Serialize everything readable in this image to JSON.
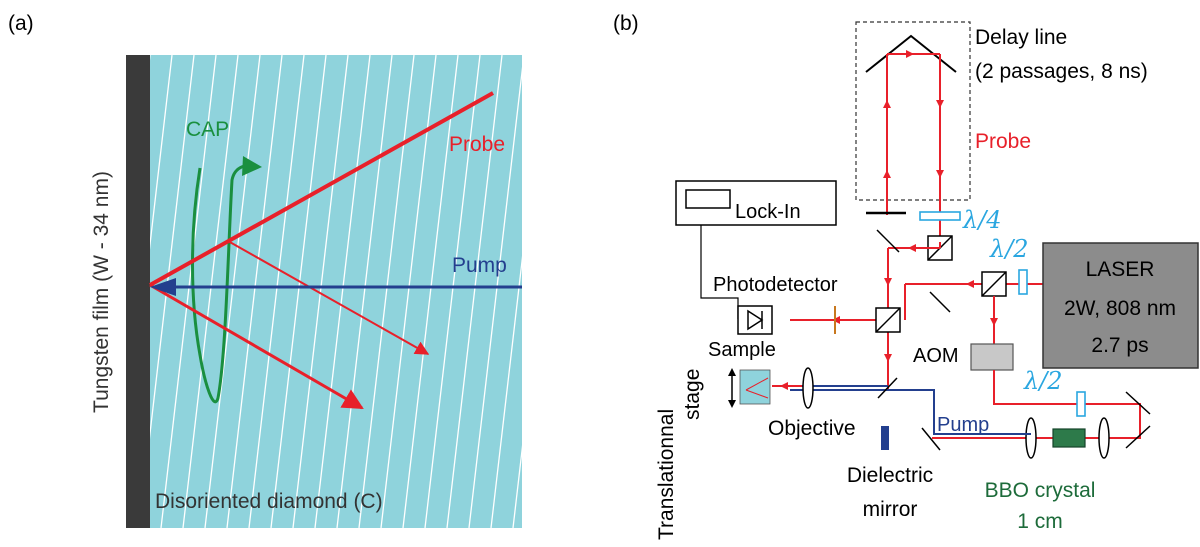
{
  "panel_a": {
    "label": "(a)",
    "film_label": "Tungsten film (W - 34 nm)",
    "substrate_label": "Disoriented diamond (C)",
    "cap_label": "CAP",
    "probe_label": "Probe",
    "pump_label": "Pump"
  },
  "panel_b": {
    "label": "(b)",
    "delay_line_1": "Delay line",
    "delay_line_2": "(2 passages, 8 ns)",
    "probe_label": "Probe",
    "lockin_label": "Lock-In",
    "quarter_wave": "λ/4",
    "half_wave_1": "λ/2",
    "half_wave_2": "λ/2",
    "photodetector_label": "Photodetector",
    "laser_1": "LASER",
    "laser_2": "2W, 808 nm",
    "laser_3": "2.7 ps",
    "sample_label": "Sample",
    "aom_label": "AOM",
    "stage_label_1": "Translationnal",
    "stage_label_2": "stage",
    "objective_label": "Objective",
    "pump_label": "Pump",
    "dielectric_1": "Dielectric",
    "dielectric_2": "mirror",
    "bbo_1": "BBO crystal",
    "bbo_2": "1 cm"
  },
  "colors": {
    "probe": "#e8202a",
    "pump": "#233f8e",
    "cap": "#1a8f3f",
    "diamond": "#8fd3dc",
    "film": "#3a3a3a",
    "waveplate": "#2aa6e0",
    "bbo": "#1d6b3a",
    "laser_box": "#8c8c8c",
    "aom_box": "#c8c8c8"
  }
}
